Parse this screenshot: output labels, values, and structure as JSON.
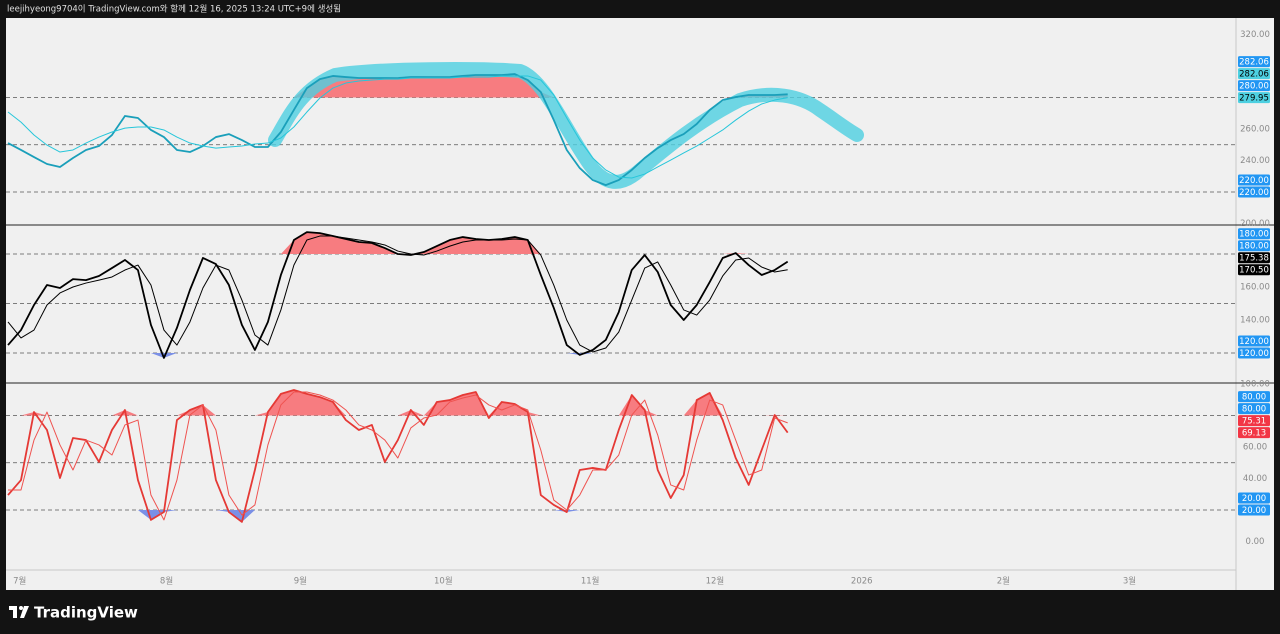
{
  "header": {
    "caption": "leejihyeong9704이 TradingView.com와 함께 12월 16, 2025 13:24 UTC+9에 생성됨"
  },
  "footer": {
    "brand": "TradingView"
  },
  "chart_data": [
    {
      "type": "line",
      "xlim": [
        0,
        94.5
      ],
      "ylim": [
        199.7,
        330.5
      ],
      "yticks": [
        {
          "value": 320,
          "label": "320.00"
        },
        {
          "value": 260,
          "label": "260.00"
        },
        {
          "value": 240,
          "label": "240.00"
        },
        {
          "value": 200,
          "label": "200.00"
        }
      ],
      "hlines": [
        280,
        250,
        220
      ],
      "fill_colors": {
        "above": "#f77c80",
        "below": "#7a8fe6"
      },
      "series": [
        {
          "color": "#1a9fba",
          "values": [
            251.1,
            246.7,
            242.2,
            237.8,
            235.9,
            241.6,
            246.7,
            249.2,
            256.2,
            268.3,
            267.0,
            259.4,
            254.9,
            246.7,
            245.4,
            249.2,
            254.9,
            256.8,
            253.0,
            248.6,
            248.6,
            258.1,
            272.1,
            286.0,
            291.7,
            293.7,
            293.0,
            292.4,
            292.4,
            292.4,
            292.4,
            293.0,
            293.0,
            293.0,
            293.0,
            293.7,
            294.3,
            294.3,
            294.3,
            294.9,
            291.1,
            283.5,
            265.7,
            246.7,
            235.2,
            227.6,
            224.4,
            227.6,
            234.0,
            241.6,
            247.9,
            253.0,
            256.8,
            263.2,
            272.1,
            278.4,
            280.3,
            281.6,
            281.6,
            281.6,
            282.06
          ]
        },
        {
          "color": "#26c6da",
          "values": [
            270.8,
            264.4,
            256.2,
            249.8,
            245.4,
            246.7,
            251.1,
            254.9,
            258.1,
            260.6,
            261.3,
            261.3,
            259.4,
            254.9,
            251.1,
            249.2,
            247.9,
            248.6,
            249.2,
            250.5,
            251.1,
            254.3,
            261.3,
            270.8,
            279.7,
            286.0,
            289.2,
            290.5,
            291.1,
            291.7,
            291.7,
            292.4,
            292.4,
            292.4,
            292.4,
            293.0,
            293.0,
            293.0,
            293.7,
            293.7,
            293.7,
            291.1,
            281.6,
            267.0,
            253.0,
            241.6,
            234.0,
            229.5,
            228.9,
            231.4,
            235.9,
            240.3,
            244.8,
            249.2,
            254.3,
            259.4,
            265.7,
            271.4,
            275.9,
            278.4,
            279.95
          ]
        }
      ],
      "price_tags": [
        {
          "value": 282.06,
          "label": "282.06",
          "color": "#2196f3",
          "text_color": "#ffffff"
        },
        {
          "value": 282.06,
          "label": "282.06",
          "color": "#4dd0e1",
          "text_color": "#000000"
        },
        {
          "value": 280,
          "label": "280.00",
          "color": "#2196f3",
          "text_color": "#ffffff"
        },
        {
          "value": 279.95,
          "label": "279.95",
          "color": "#4dd0e1",
          "text_color": "#000000"
        },
        {
          "value": 220,
          "label": "220.00",
          "color": "#2196f3",
          "text_color": "#ffffff"
        },
        {
          "value": 220,
          "label": "220.00",
          "color": "#2196f3",
          "text_color": "#ffffff"
        }
      ]
    },
    {
      "type": "line",
      "xlim": [
        0,
        94.5
      ],
      "ylim": [
        102.4,
        197
      ],
      "yticks": [
        {
          "value": 160,
          "label": "160.00"
        },
        {
          "value": 140,
          "label": "140.00"
        }
      ],
      "hlines": [
        180,
        150,
        120
      ],
      "fill_colors": {
        "above": "#f77c80",
        "below": "#7a8fe6"
      },
      "series": [
        {
          "color": "#000000",
          "values": [
            124.8,
            133.9,
            149.1,
            161.2,
            159.4,
            164.8,
            164.2,
            166.7,
            171.5,
            176.4,
            170.3,
            137.0,
            117.0,
            135.2,
            158.2,
            177.6,
            173.9,
            161.2,
            137.0,
            121.8,
            138.8,
            167.3,
            188.5,
            193.3,
            192.7,
            190.9,
            189.1,
            187.3,
            186.7,
            183.6,
            180.0,
            179.4,
            181.2,
            184.8,
            188.5,
            190.3,
            189.1,
            188.5,
            189.1,
            190.3,
            188.5,
            167.3,
            147.3,
            124.8,
            118.8,
            121.8,
            127.9,
            144.8,
            170.3,
            179.4,
            169.1,
            149.1,
            140.0,
            149.1,
            163.0,
            177.6,
            180.6,
            173.3,
            167.3,
            170.3,
            175.38
          ]
        },
        {
          "color": "#000000",
          "values": [
            138.8,
            129.1,
            133.9,
            149.1,
            156.4,
            160.0,
            162.4,
            164.2,
            166.1,
            170.3,
            173.3,
            161.2,
            133.9,
            124.8,
            138.8,
            159.4,
            173.3,
            170.3,
            152.1,
            130.9,
            124.8,
            146.1,
            173.3,
            188.5,
            190.9,
            190.9,
            189.7,
            188.5,
            187.3,
            185.5,
            181.8,
            180.0,
            179.4,
            181.8,
            184.8,
            187.3,
            188.5,
            188.5,
            188.5,
            189.1,
            188.5,
            179.4,
            161.2,
            140.0,
            124.8,
            120.6,
            123.0,
            132.7,
            152.1,
            171.5,
            175.2,
            161.2,
            146.1,
            143.0,
            152.1,
            166.7,
            176.4,
            177.6,
            172.1,
            169.1,
            170.5
          ]
        }
      ],
      "price_tags": [
        {
          "value": 180,
          "label": "180.00",
          "color": "#2196f3",
          "text_color": "#ffffff"
        },
        {
          "value": 180,
          "label": "180.00",
          "color": "#2196f3",
          "text_color": "#ffffff"
        },
        {
          "value": 175.38,
          "label": "175.38",
          "color": "#000000",
          "text_color": "#ffffff"
        },
        {
          "value": 170.5,
          "label": "170.50",
          "color": "#000000",
          "text_color": "#ffffff"
        },
        {
          "value": 120,
          "label": "120.00",
          "color": "#2196f3",
          "text_color": "#ffffff"
        },
        {
          "value": 120,
          "label": "120.00",
          "color": "#2196f3",
          "text_color": "#ffffff"
        }
      ]
    },
    {
      "type": "line",
      "xlim": [
        0,
        94.5
      ],
      "ylim": [
        -18.1,
        100
      ],
      "yticks": [
        {
          "value": 100,
          "label": "100.00"
        },
        {
          "value": 60,
          "label": "60.00"
        },
        {
          "value": 40,
          "label": "40.00"
        },
        {
          "value": 0,
          "label": "0.00"
        }
      ],
      "xticks": [
        {
          "value": 0.9,
          "label": "7월"
        },
        {
          "value": 12.2,
          "label": "8월"
        },
        {
          "value": 22.5,
          "label": "9월"
        },
        {
          "value": 33.5,
          "label": "10월"
        },
        {
          "value": 44.8,
          "label": "11월"
        },
        {
          "value": 54.4,
          "label": "12월"
        },
        {
          "value": 65.7,
          "label": "2026"
        },
        {
          "value": 76.6,
          "label": "2월"
        },
        {
          "value": 86.3,
          "label": "3월"
        }
      ],
      "hlines": [
        80,
        50,
        20
      ],
      "fill_colors": {
        "above": "#f77c80",
        "below": "#7a8fe6"
      },
      "series": [
        {
          "color": "#e53935",
          "values": [
            29.5,
            39.0,
            82.2,
            70.8,
            40.3,
            65.7,
            64.4,
            50.5,
            70.8,
            83.5,
            39.0,
            13.7,
            18.7,
            77.1,
            83.5,
            86.7,
            39.0,
            18.7,
            12.4,
            45.4,
            82.2,
            93.7,
            96.2,
            93.7,
            91.7,
            88.6,
            77.1,
            70.8,
            74.0,
            50.5,
            64.4,
            83.5,
            74.0,
            88.6,
            89.8,
            93.0,
            94.9,
            78.4,
            88.6,
            87.3,
            82.2,
            29.5,
            23.2,
            18.7,
            45.4,
            46.7,
            45.4,
            70.8,
            93.0,
            83.5,
            45.4,
            27.6,
            42.2,
            89.8,
            94.3,
            77.1,
            53.0,
            35.9,
            58.1,
            80.3,
            69.13
          ]
        },
        {
          "color": "#ef5350",
          "values": [
            32.7,
            32.7,
            64.4,
            82.2,
            61.3,
            45.4,
            64.4,
            61.3,
            54.9,
            74.0,
            77.1,
            29.5,
            13.7,
            39.0,
            80.3,
            86.7,
            70.8,
            29.5,
            16.8,
            23.2,
            61.3,
            86.7,
            94.9,
            94.9,
            93.0,
            89.8,
            83.5,
            74.0,
            70.8,
            64.4,
            53.0,
            72.1,
            78.4,
            80.3,
            88.6,
            91.1,
            93.0,
            86.7,
            83.5,
            86.7,
            83.5,
            58.1,
            26.3,
            20.0,
            29.5,
            45.4,
            45.4,
            54.9,
            80.3,
            89.8,
            67.6,
            35.9,
            32.7,
            64.4,
            89.8,
            86.7,
            64.4,
            42.2,
            45.4,
            78.4,
            75.31
          ]
        }
      ],
      "price_tags": [
        {
          "value": 80,
          "label": "80.00",
          "color": "#2196f3",
          "text_color": "#ffffff"
        },
        {
          "value": 80,
          "label": "80.00",
          "color": "#2196f3",
          "text_color": "#ffffff"
        },
        {
          "value": 75.31,
          "label": "75.31",
          "color": "#f23645",
          "text_color": "#ffffff"
        },
        {
          "value": 69.13,
          "label": "69.13",
          "color": "#f23645",
          "text_color": "#ffffff"
        },
        {
          "value": 20,
          "label": "20.00",
          "color": "#2196f3",
          "text_color": "#ffffff"
        },
        {
          "value": 20,
          "label": "20.00",
          "color": "#2196f3",
          "text_color": "#ffffff"
        }
      ]
    }
  ]
}
